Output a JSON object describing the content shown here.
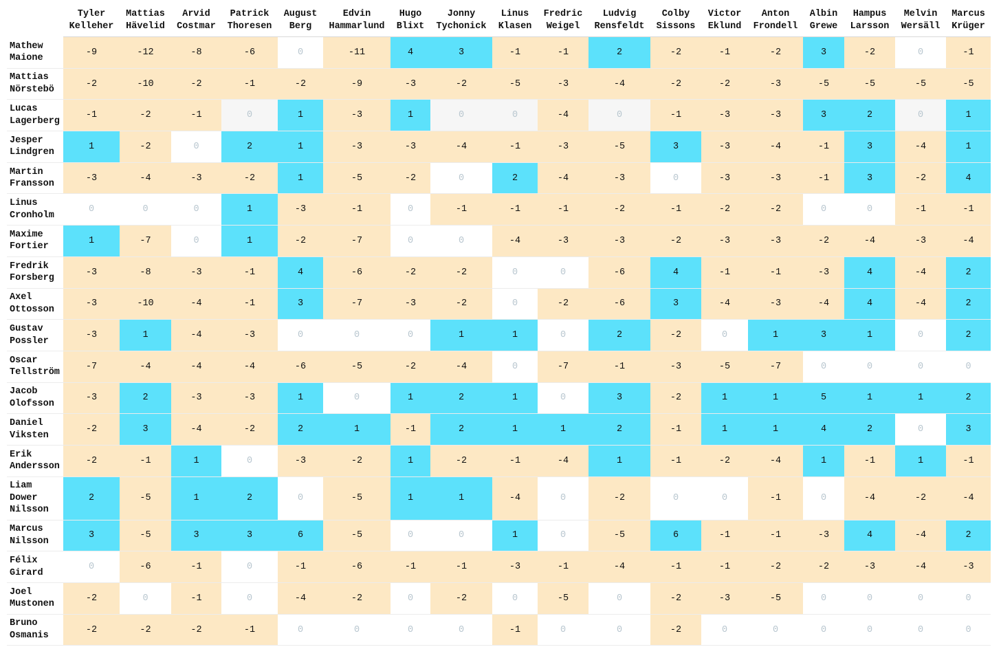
{
  "chart_data": {
    "type": "heatmap",
    "columns": [
      "Tyler\nKelleher",
      "Mattias\nHävelid",
      "Arvid\nCostmar",
      "Patrick\nThoresen",
      "August\nBerg",
      "Edvin\nHammarlund",
      "Hugo\nBlixt",
      "Jonny\nTychonick",
      "Linus\nKlasen",
      "Fredric\nWeigel",
      "Ludvig\nRensfeldt",
      "Colby\nSissons",
      "Victor\nEklund",
      "Anton\nFrondell",
      "Albin\nGrewe",
      "Hampus\nLarsson",
      "Melvin\nWersäll",
      "Marcus\nKrüger"
    ],
    "rows": [
      "Mathew\nMaione",
      "Mattias\nNörstebö",
      "Lucas\nLagerberg",
      "Jesper\nLindgren",
      "Martin\nFransson",
      "Linus\nCronholm",
      "Maxime\nFortier",
      "Fredrik\nForsberg",
      "Axel\nOttosson",
      "Gustav\nPossler",
      "Oscar\nTellström",
      "Jacob\nOlofsson",
      "Daniel\nViksten",
      "Erik\nAndersson",
      "Liam\nDower\nNilsson",
      "Marcus\nNilsson",
      "Félix\nGirard",
      "Joel\nMustonen",
      "Bruno\nOsmanis"
    ],
    "values": [
      [
        -9,
        -12,
        -8,
        -6,
        0,
        -11,
        4,
        3,
        -1,
        -1,
        2,
        -2,
        -1,
        -2,
        3,
        -2,
        0,
        -1
      ],
      [
        -2,
        -10,
        -2,
        -1,
        -2,
        -9,
        -3,
        -2,
        -5,
        -3,
        -4,
        -2,
        -2,
        -3,
        -5,
        -5,
        -5,
        -5
      ],
      [
        -1,
        -2,
        -1,
        0,
        1,
        -3,
        1,
        0,
        0,
        -4,
        0,
        -1,
        -3,
        -3,
        3,
        2,
        0,
        1
      ],
      [
        1,
        -2,
        0,
        2,
        1,
        -3,
        -3,
        -4,
        -1,
        -3,
        -5,
        3,
        -3,
        -4,
        -1,
        3,
        -4,
        1
      ],
      [
        -3,
        -4,
        -3,
        -2,
        1,
        -5,
        -2,
        0,
        2,
        -4,
        -3,
        0,
        -3,
        -3,
        -1,
        3,
        -2,
        4
      ],
      [
        0,
        0,
        0,
        1,
        -3,
        -1,
        0,
        -1,
        -1,
        -1,
        -2,
        -1,
        -2,
        -2,
        0,
        0,
        -1,
        -1
      ],
      [
        1,
        -7,
        0,
        1,
        -2,
        -7,
        0,
        0,
        -4,
        -3,
        -3,
        -2,
        -3,
        -3,
        -2,
        -4,
        -3,
        -4
      ],
      [
        -3,
        -8,
        -3,
        -1,
        4,
        -6,
        -2,
        -2,
        0,
        0,
        -6,
        4,
        -1,
        -1,
        -3,
        4,
        -4,
        2
      ],
      [
        -3,
        -10,
        -4,
        -1,
        3,
        -7,
        -3,
        -2,
        0,
        -2,
        -6,
        3,
        -4,
        -3,
        -4,
        4,
        -4,
        2
      ],
      [
        -3,
        1,
        -4,
        -3,
        0,
        0,
        0,
        1,
        1,
        0,
        2,
        -2,
        0,
        1,
        3,
        1,
        0,
        2
      ],
      [
        -7,
        -4,
        -4,
        -4,
        -6,
        -5,
        -2,
        -4,
        0,
        -7,
        -1,
        -3,
        -5,
        -7,
        0,
        0,
        0,
        0
      ],
      [
        -3,
        2,
        -3,
        -3,
        1,
        0,
        1,
        2,
        1,
        0,
        3,
        -2,
        1,
        1,
        5,
        1,
        1,
        2
      ],
      [
        -2,
        3,
        -4,
        -2,
        2,
        1,
        -1,
        2,
        1,
        1,
        2,
        -1,
        1,
        1,
        4,
        2,
        0,
        3
      ],
      [
        -2,
        -1,
        1,
        0,
        -3,
        -2,
        1,
        -2,
        -1,
        -4,
        1,
        -1,
        -2,
        -4,
        1,
        -1,
        1,
        -1
      ],
      [
        2,
        -5,
        1,
        2,
        0,
        -5,
        1,
        1,
        -4,
        0,
        -2,
        0,
        0,
        -1,
        0,
        -4,
        -2,
        -4
      ],
      [
        3,
        -5,
        3,
        3,
        6,
        -5,
        0,
        0,
        1,
        0,
        -5,
        6,
        -1,
        -1,
        -3,
        4,
        -4,
        2
      ],
      [
        0,
        -6,
        -1,
        0,
        -1,
        -6,
        -1,
        -1,
        -3,
        -1,
        -4,
        -1,
        -1,
        -2,
        -2,
        -3,
        -4,
        -3
      ],
      [
        -2,
        0,
        -1,
        0,
        -4,
        -2,
        0,
        -2,
        0,
        -5,
        0,
        -2,
        -3,
        -5,
        0,
        0,
        0,
        0
      ],
      [
        -2,
        -2,
        -2,
        -1,
        0,
        0,
        0,
        0,
        -1,
        0,
        0,
        -2,
        0,
        0,
        0,
        0,
        0,
        0
      ]
    ],
    "colors": {
      "positive": "#5ce1fb",
      "negative": "#fde8c4",
      "zero": "#ffffff",
      "zero_alt": "#f6f6f6",
      "zero_text": "#b8c6cf"
    }
  }
}
